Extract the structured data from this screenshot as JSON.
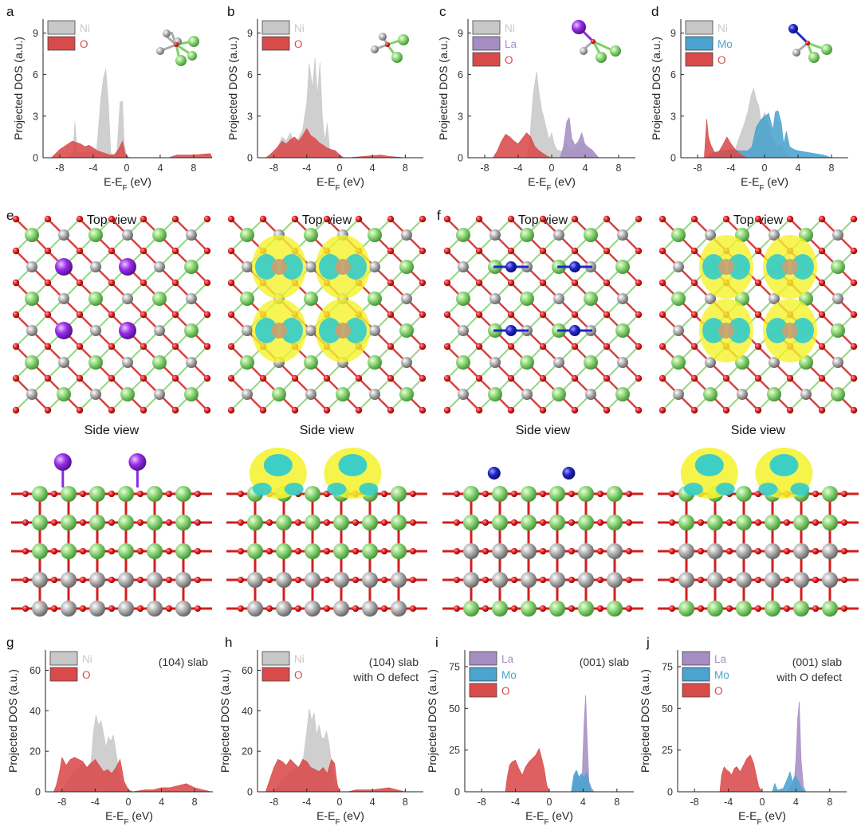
{
  "figure": {
    "panel_labels": [
      "a",
      "b",
      "c",
      "d",
      "e",
      "f",
      "g",
      "h",
      "i",
      "j"
    ],
    "colors": {
      "Ni": "#c8c8c8",
      "O": "#d94a4a",
      "La": "#a68ec4",
      "Mo": "#4ba3cf",
      "ni_atom": "#9c9c9c",
      "o_atom": "#d11f1f",
      "la_atom": "#8a2be2",
      "mo_atom": "#1f22c4",
      "li_atom": "#7fcf6a",
      "iso_yellow": "#f5f22a",
      "iso_cyan": "#33cccc"
    }
  },
  "structures": {
    "e": {
      "views": [
        "Top view",
        "Top view",
        "Side view",
        "Side view"
      ]
    },
    "f": {
      "views": [
        "Top view",
        "Top view",
        "Side view",
        "Side view"
      ]
    }
  },
  "chart_data": [
    {
      "panel": "a",
      "type": "area",
      "xlabel": "E-E_F (eV)",
      "ylabel": "Projected DOS (a.u.)",
      "xlim": [
        -10,
        10.2
      ],
      "ylim": [
        0,
        10
      ],
      "xticks": [
        -8,
        -4,
        0,
        4,
        8
      ],
      "yticks": [
        0,
        3,
        6,
        9
      ],
      "series": [
        {
          "name": "Ni",
          "color": "#c8c8c8",
          "x": [
            -7,
            -6.4,
            -6.2,
            -5.9,
            -5,
            -3.6,
            -3.1,
            -2.8,
            -2.5,
            -2.2,
            -1.9,
            -1.2,
            -0.8,
            -0.5,
            -0.3,
            0,
            0.5
          ],
          "y": [
            0,
            0.4,
            2.6,
            0.4,
            0.4,
            0.5,
            4.2,
            5.7,
            6.4,
            4.0,
            0.3,
            0.2,
            4.0,
            4.1,
            1.0,
            0.1,
            0
          ]
        },
        {
          "name": "O",
          "color": "#d94a4a",
          "x": [
            -9,
            -8.5,
            -8,
            -7.5,
            -7,
            -6.5,
            -6,
            -5.5,
            -5,
            -4.5,
            -4,
            -3.5,
            -3,
            -2.5,
            -2,
            -1.5,
            -1,
            -0.5,
            -0.2,
            0.2,
            1,
            5,
            6,
            8,
            10,
            10.2
          ],
          "y": [
            0,
            0.3,
            0.6,
            0.8,
            1.0,
            1.2,
            1.1,
            1.0,
            0.8,
            0.9,
            0.7,
            0.5,
            0.4,
            0.3,
            0.2,
            0.2,
            0.6,
            1.2,
            0.3,
            0,
            0,
            0,
            0.2,
            0.2,
            0.3,
            0
          ]
        }
      ]
    },
    {
      "panel": "b",
      "type": "area",
      "xlabel": "E-E_F (eV)",
      "ylabel": "Projected DOS (a.u.)",
      "xlim": [
        -10,
        10.2
      ],
      "ylim": [
        0,
        10
      ],
      "xticks": [
        -8,
        -4,
        0,
        4,
        8
      ],
      "yticks": [
        0,
        3,
        6,
        9
      ],
      "series": [
        {
          "name": "Ni",
          "color": "#c8c8c8",
          "x": [
            -8,
            -7.5,
            -7,
            -6.5,
            -6,
            -5.5,
            -5,
            -4.5,
            -4,
            -3.7,
            -3.3,
            -3,
            -2.7,
            -2.4,
            -2.1,
            -1.8,
            -1.5,
            -1.2,
            -0.8,
            -0.5,
            0
          ],
          "y": [
            0,
            0.8,
            1.5,
            1.2,
            1.8,
            1.0,
            1.4,
            2.0,
            4.0,
            6.8,
            5.0,
            7.2,
            4.5,
            6.9,
            3.0,
            1.2,
            2.5,
            0.5,
            0.5,
            0.3,
            0
          ]
        },
        {
          "name": "O",
          "color": "#d94a4a",
          "x": [
            -9,
            -8.5,
            -8,
            -7.5,
            -7,
            -6.5,
            -6,
            -5.5,
            -5,
            -4.5,
            -4,
            -3.5,
            -3,
            -2.5,
            -2,
            -1.5,
            -1,
            -0.5,
            0,
            0.5,
            1,
            3,
            5,
            6,
            8,
            10
          ],
          "y": [
            0,
            0.2,
            0.5,
            0.8,
            1.2,
            1.0,
            1.3,
            1.5,
            1.2,
            1.6,
            2.1,
            1.6,
            1.4,
            1.1,
            0.9,
            0.7,
            0.6,
            0.5,
            0.2,
            0,
            0,
            0.1,
            0.2,
            0.1,
            0,
            0
          ]
        }
      ]
    },
    {
      "panel": "c",
      "type": "area",
      "xlabel": "E-E_F (eV)",
      "ylabel": "Projected DOS (a.u.)",
      "xlim": [
        -10,
        10
      ],
      "ylim": [
        0,
        10
      ],
      "xticks": [
        -8,
        -4,
        0,
        4,
        8
      ],
      "yticks": [
        0,
        3,
        6,
        9
      ],
      "series": [
        {
          "name": "Ni",
          "color": "#c8c8c8",
          "x": [
            -3,
            -2.6,
            -2.2,
            -1.8,
            -1.5,
            -1.2,
            -0.9,
            -0.6,
            -0.3,
            0,
            0.3,
            0.6,
            1.0,
            1.3,
            1.6,
            2.0,
            2.4,
            2.8,
            3.2,
            3.6,
            4,
            4.4,
            4.8,
            5.2,
            5.6
          ],
          "y": [
            0,
            1.5,
            4.6,
            6.2,
            4.6,
            3.5,
            2.8,
            2.0,
            1.3,
            1.8,
            1.0,
            0.6,
            0.5,
            0.4,
            1.0,
            0.8,
            0.6,
            0.7,
            0.9,
            1.2,
            1.0,
            0.8,
            0.5,
            0.2,
            0
          ]
        },
        {
          "name": "La",
          "color": "#a68ec4",
          "x": [
            1,
            1.4,
            1.8,
            2.1,
            2.4,
            2.8,
            3.2,
            3.6,
            4,
            4.4,
            4.8,
            5.2,
            5.6
          ],
          "y": [
            0,
            0.8,
            2.6,
            2.9,
            1.4,
            0.9,
            1.2,
            1.8,
            0.9,
            0.7,
            0.6,
            0.3,
            0
          ]
        },
        {
          "name": "O",
          "color": "#d94a4a",
          "x": [
            -7,
            -6.5,
            -6,
            -5.5,
            -5,
            -4.5,
            -4,
            -3.5,
            -3,
            -2.5,
            -2,
            -1.5,
            -1,
            -0.5,
            0
          ],
          "y": [
            0,
            0.5,
            1.2,
            1.7,
            1.5,
            1.2,
            1.0,
            1.4,
            1.8,
            1.5,
            0.8,
            0.5,
            0.3,
            0.1,
            0
          ]
        }
      ]
    },
    {
      "panel": "d",
      "type": "area",
      "xlabel": "E-E_F (eV)",
      "ylabel": "Projected DOS (a.u.)",
      "xlim": [
        -10,
        10
      ],
      "ylim": [
        0,
        10
      ],
      "xticks": [
        -8,
        -4,
        0,
        4,
        8
      ],
      "yticks": [
        0,
        3,
        6,
        9
      ],
      "series": [
        {
          "name": "Ni",
          "color": "#c8c8c8",
          "x": [
            -4,
            -3.5,
            -3,
            -2.5,
            -2,
            -1.6,
            -1.3,
            -1.0,
            -0.7,
            -0.4,
            0,
            0.5,
            1.0,
            1.5,
            2.0,
            2.5,
            3
          ],
          "y": [
            0,
            0.6,
            1.5,
            2.3,
            3.3,
            4.5,
            5.0,
            4.2,
            3.8,
            2.6,
            3.3,
            2.2,
            1.3,
            0.8,
            1.0,
            0.4,
            0
          ]
        },
        {
          "name": "Mo",
          "color": "#4ba3cf",
          "x": [
            -7,
            -6,
            -5,
            -4,
            -3,
            -2,
            -1.5,
            -1,
            -0.5,
            0,
            0.5,
            1,
            1.3,
            1.6,
            2,
            2.3,
            2.6,
            3,
            3.5,
            4,
            5,
            6,
            7,
            8
          ],
          "y": [
            0,
            0.4,
            0.5,
            0.6,
            0.5,
            0.5,
            0.8,
            2.2,
            2.7,
            3.0,
            3.2,
            2.0,
            3.3,
            3.4,
            2.5,
            1.0,
            1.9,
            0.8,
            0.6,
            0.5,
            0.4,
            0.3,
            0.2,
            0
          ]
        },
        {
          "name": "O",
          "color": "#d94a4a",
          "x": [
            -7.2,
            -6.9,
            -6.7,
            -6.4,
            -6,
            -5.5,
            -5,
            -4.5,
            -4,
            -3.5,
            -3,
            -2.5,
            -2
          ],
          "y": [
            0,
            2.8,
            1.5,
            0.9,
            0.4,
            0.4,
            0.9,
            1.5,
            1.0,
            0.6,
            0.3,
            0.1,
            0
          ]
        }
      ]
    },
    {
      "panel": "g",
      "type": "area",
      "xlabel": "E-E_F (eV)",
      "ylabel": "Projected DOS (a.u.)",
      "xlim": [
        -10,
        10.2
      ],
      "ylim": [
        0,
        70
      ],
      "xticks": [
        -8,
        -4,
        0,
        4,
        8
      ],
      "yticks": [
        0,
        20,
        40,
        60
      ],
      "annotation": "(104) slab",
      "series": [
        {
          "name": "Ni",
          "color": "#c8c8c8",
          "x": [
            -8,
            -7.5,
            -7,
            -6.5,
            -6,
            -5.5,
            -5,
            -4.5,
            -4.2,
            -3.9,
            -3.6,
            -3.3,
            -3.0,
            -2.7,
            -2.4,
            -2.1,
            -1.8,
            -1.5,
            -1.2,
            -0.9,
            -0.5,
            0
          ],
          "y": [
            0,
            5,
            8,
            10,
            12,
            14,
            12,
            15,
            30,
            38,
            33,
            35,
            29,
            22,
            27,
            25,
            28,
            20,
            12,
            5,
            2,
            0
          ]
        },
        {
          "name": "O",
          "color": "#d94a4a",
          "x": [
            -9,
            -8.7,
            -8.3,
            -8,
            -7.5,
            -7,
            -6.5,
            -6,
            -5.5,
            -5,
            -4.5,
            -4,
            -3.5,
            -3,
            -2.5,
            -2,
            -1.5,
            -1,
            -0.5,
            0,
            0.5,
            2,
            3,
            4,
            5,
            6,
            7,
            8,
            9,
            10
          ],
          "y": [
            0,
            3,
            10,
            17,
            13,
            16,
            17,
            16,
            15,
            12,
            14,
            16,
            13,
            10,
            11,
            9,
            12,
            16,
            5,
            1,
            0,
            1,
            1,
            2,
            2,
            3,
            4,
            2,
            1,
            0
          ]
        }
      ]
    },
    {
      "panel": "h",
      "type": "area",
      "xlabel": "E-E_F (eV)",
      "ylabel": "Projected DOS (a.u.)",
      "xlim": [
        -10,
        10.2
      ],
      "ylim": [
        0,
        70
      ],
      "xticks": [
        -8,
        -4,
        0,
        4,
        8
      ],
      "yticks": [
        0,
        20,
        40,
        60
      ],
      "annotation": "(104) slab\nwith O defect",
      "series": [
        {
          "name": "Ni",
          "color": "#c8c8c8",
          "x": [
            -8,
            -7,
            -6,
            -5,
            -4.5,
            -4.0,
            -3.7,
            -3.4,
            -3.1,
            -2.8,
            -2.5,
            -2.2,
            -1.9,
            -1.6,
            -1.3,
            -1.0,
            -0.7,
            -0.4,
            0
          ],
          "y": [
            0,
            6,
            10,
            12,
            14,
            30,
            41,
            35,
            39,
            28,
            33,
            27,
            26,
            30,
            24,
            15,
            6,
            2,
            0
          ]
        },
        {
          "name": "O",
          "color": "#d94a4a",
          "x": [
            -9,
            -8.5,
            -8,
            -7.5,
            -7,
            -6.5,
            -6,
            -5.5,
            -5,
            -4.5,
            -4,
            -3.5,
            -3,
            -2.5,
            -2,
            -1.5,
            -1,
            -0.6,
            -0.3,
            0,
            1,
            2,
            4,
            6,
            7,
            8,
            10
          ],
          "y": [
            0,
            6,
            12,
            16,
            15,
            13,
            16,
            14,
            12,
            16,
            15,
            12,
            11,
            10,
            12,
            9,
            16,
            14,
            4,
            0,
            0,
            1,
            1,
            2,
            1,
            0,
            0
          ]
        }
      ]
    },
    {
      "panel": "i",
      "type": "area",
      "xlabel": "E-E_F (eV)",
      "ylabel": "Projected DOS (a.u.)",
      "xlim": [
        -10,
        10
      ],
      "ylim": [
        0,
        85
      ],
      "xticks": [
        -8,
        -4,
        0,
        4,
        8
      ],
      "yticks": [
        0,
        25,
        50,
        75
      ],
      "annotation": "(001) slab",
      "series": [
        {
          "name": "La",
          "color": "#a68ec4",
          "x": [
            2.6,
            3.0,
            3.3,
            3.6,
            3.9,
            4.1,
            4.3,
            4.5,
            4.7,
            5.0,
            5.3
          ],
          "y": [
            0,
            8,
            12,
            6,
            10,
            40,
            58,
            30,
            6,
            2,
            0
          ]
        },
        {
          "name": "Mo",
          "color": "#4ba3cf",
          "x": [
            2.6,
            2.9,
            3.2,
            3.5,
            3.8,
            4.1,
            4.4,
            4.7,
            5.0
          ],
          "y": [
            0,
            10,
            13,
            9,
            11,
            8,
            12,
            5,
            0
          ]
        },
        {
          "name": "O",
          "color": "#d94a4a",
          "x": [
            -5.2,
            -5,
            -4.7,
            -4.4,
            -4.0,
            -3.6,
            -3.2,
            -2.8,
            -2.4,
            -2.0,
            -1.6,
            -1.2,
            -0.9,
            -0.6,
            -0.3,
            0
          ],
          "y": [
            0,
            8,
            16,
            18,
            19,
            14,
            10,
            15,
            18,
            20,
            22,
            26,
            20,
            14,
            4,
            0
          ]
        }
      ]
    },
    {
      "panel": "j",
      "type": "area",
      "xlabel": "E-E_F (eV)",
      "ylabel": "Projected DOS (a.u.)",
      "xlim": [
        -10,
        10
      ],
      "ylim": [
        0,
        85
      ],
      "xticks": [
        -8,
        -4,
        0,
        4,
        8
      ],
      "yticks": [
        0,
        25,
        50,
        75
      ],
      "annotation": "(001) slab\nwith O defect",
      "series": [
        {
          "name": "La",
          "color": "#a68ec4",
          "x": [
            3.0,
            3.5,
            3.8,
            4.0,
            4.2,
            4.4,
            4.6,
            4.9,
            5.2
          ],
          "y": [
            0,
            4,
            6,
            20,
            44,
            54,
            20,
            3,
            0
          ]
        },
        {
          "name": "Mo",
          "color": "#4ba3cf",
          "x": [
            1.2,
            1.5,
            1.8,
            2.5,
            3.0,
            3.3,
            3.6,
            3.9,
            4.2,
            4.6,
            5.0
          ],
          "y": [
            0,
            5,
            1,
            2,
            8,
            12,
            6,
            10,
            7,
            3,
            0
          ]
        },
        {
          "name": "O",
          "color": "#d94a4a",
          "x": [
            -5,
            -4.8,
            -4.5,
            -4.2,
            -3.9,
            -3.6,
            -3.3,
            -3.0,
            -2.6,
            -2.2,
            -1.8,
            -1.4,
            -1.0,
            -0.7,
            -0.4,
            0
          ],
          "y": [
            0,
            10,
            15,
            13,
            12,
            10,
            14,
            15,
            12,
            16,
            20,
            22,
            17,
            10,
            3,
            0
          ]
        }
      ]
    }
  ]
}
